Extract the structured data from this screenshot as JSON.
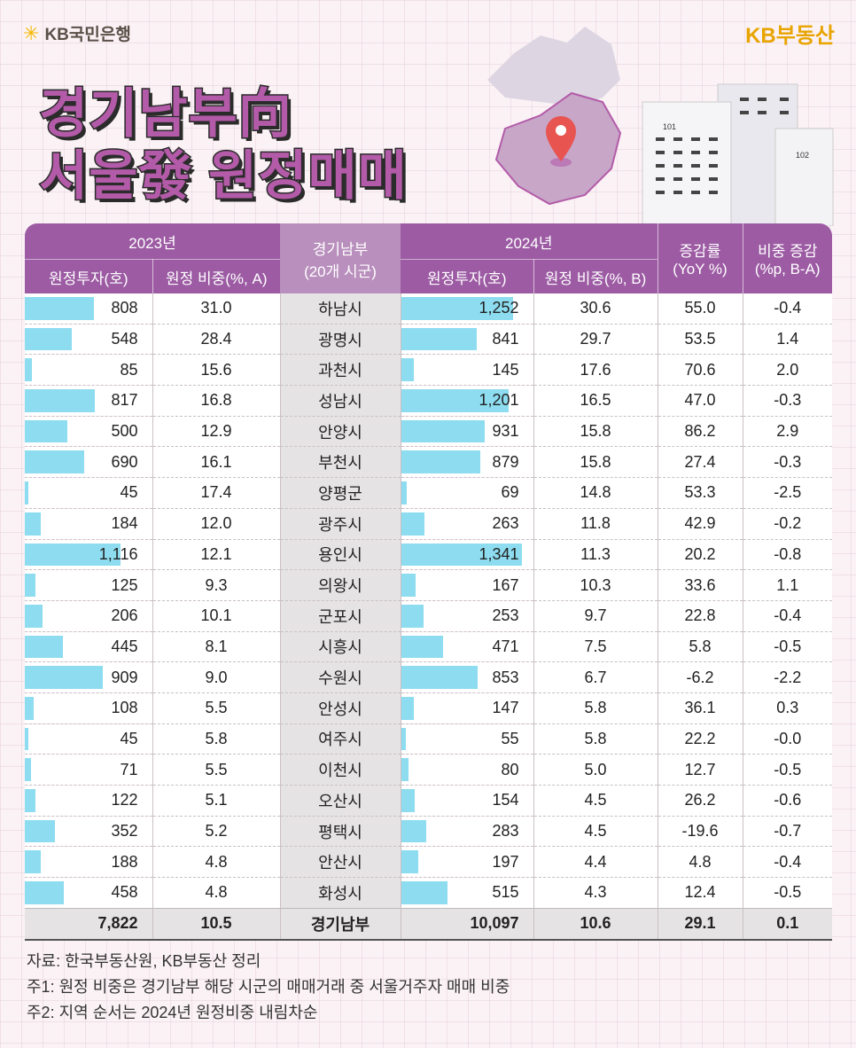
{
  "brand": {
    "bank": "KB국민은행",
    "realestate": "KB부동산"
  },
  "title": {
    "line1": "경기남부向",
    "line2": "서울發 원정매매"
  },
  "map_buildings": [
    "101",
    "102"
  ],
  "table": {
    "group_2023": "2023년",
    "group_2024": "2024년",
    "col_invest_2023": "원정투자(호)",
    "col_share_2023": "원정 비중(%, A)",
    "col_region": [
      "경기남부",
      "(20개 시군)"
    ],
    "col_invest_2024": "원정투자(호)",
    "col_share_2024": "원정 비중(%, B)",
    "col_yoy": [
      "증감률",
      "(YoY %)"
    ],
    "col_diff": [
      "비중 증감",
      "(%p, B-A)"
    ],
    "rows": [
      {
        "inv23": "808",
        "sh23": "31.0",
        "city": "하남시",
        "inv24": "1,252",
        "sh24": "30.6",
        "yoy": "55.0",
        "diff": "-0.4"
      },
      {
        "inv23": "548",
        "sh23": "28.4",
        "city": "광명시",
        "inv24": "841",
        "sh24": "29.7",
        "yoy": "53.5",
        "diff": "1.4"
      },
      {
        "inv23": "85",
        "sh23": "15.6",
        "city": "과천시",
        "inv24": "145",
        "sh24": "17.6",
        "yoy": "70.6",
        "diff": "2.0"
      },
      {
        "inv23": "817",
        "sh23": "16.8",
        "city": "성남시",
        "inv24": "1,201",
        "sh24": "16.5",
        "yoy": "47.0",
        "diff": "-0.3"
      },
      {
        "inv23": "500",
        "sh23": "12.9",
        "city": "안양시",
        "inv24": "931",
        "sh24": "15.8",
        "yoy": "86.2",
        "diff": "2.9"
      },
      {
        "inv23": "690",
        "sh23": "16.1",
        "city": "부천시",
        "inv24": "879",
        "sh24": "15.8",
        "yoy": "27.4",
        "diff": "-0.3"
      },
      {
        "inv23": "45",
        "sh23": "17.4",
        "city": "양평군",
        "inv24": "69",
        "sh24": "14.8",
        "yoy": "53.3",
        "diff": "-2.5"
      },
      {
        "inv23": "184",
        "sh23": "12.0",
        "city": "광주시",
        "inv24": "263",
        "sh24": "11.8",
        "yoy": "42.9",
        "diff": "-0.2"
      },
      {
        "inv23": "1,116",
        "sh23": "12.1",
        "city": "용인시",
        "inv24": "1,341",
        "sh24": "11.3",
        "yoy": "20.2",
        "diff": "-0.8"
      },
      {
        "inv23": "125",
        "sh23": "9.3",
        "city": "의왕시",
        "inv24": "167",
        "sh24": "10.3",
        "yoy": "33.6",
        "diff": "1.1"
      },
      {
        "inv23": "206",
        "sh23": "10.1",
        "city": "군포시",
        "inv24": "253",
        "sh24": "9.7",
        "yoy": "22.8",
        "diff": "-0.4"
      },
      {
        "inv23": "445",
        "sh23": "8.1",
        "city": "시흥시",
        "inv24": "471",
        "sh24": "7.5",
        "yoy": "5.8",
        "diff": "-0.5"
      },
      {
        "inv23": "909",
        "sh23": "9.0",
        "city": "수원시",
        "inv24": "853",
        "sh24": "6.7",
        "yoy": "-6.2",
        "diff": "-2.2"
      },
      {
        "inv23": "108",
        "sh23": "5.5",
        "city": "안성시",
        "inv24": "147",
        "sh24": "5.8",
        "yoy": "36.1",
        "diff": "0.3"
      },
      {
        "inv23": "45",
        "sh23": "5.8",
        "city": "여주시",
        "inv24": "55",
        "sh24": "5.8",
        "yoy": "22.2",
        "diff": "-0.0"
      },
      {
        "inv23": "71",
        "sh23": "5.5",
        "city": "이천시",
        "inv24": "80",
        "sh24": "5.0",
        "yoy": "12.7",
        "diff": "-0.5"
      },
      {
        "inv23": "122",
        "sh23": "5.1",
        "city": "오산시",
        "inv24": "154",
        "sh24": "4.5",
        "yoy": "26.2",
        "diff": "-0.6"
      },
      {
        "inv23": "352",
        "sh23": "5.2",
        "city": "평택시",
        "inv24": "283",
        "sh24": "4.5",
        "yoy": "-19.6",
        "diff": "-0.7"
      },
      {
        "inv23": "188",
        "sh23": "4.8",
        "city": "안산시",
        "inv24": "197",
        "sh24": "4.4",
        "yoy": "4.8",
        "diff": "-0.4"
      },
      {
        "inv23": "458",
        "sh23": "4.8",
        "city": "화성시",
        "inv24": "515",
        "sh24": "4.3",
        "yoy": "12.4",
        "diff": "-0.5"
      }
    ],
    "total": {
      "inv23": "7,822",
      "sh23": "10.5",
      "city": "경기남부",
      "inv24": "10,097",
      "sh24": "10.6",
      "yoy": "29.1",
      "diff": "0.1"
    }
  },
  "notes": [
    "자료: 한국부동산원, KB부동산 정리",
    "주1: 원정 비중은 경기남부 해당 시군의 매매거래 중 서울거주자 매매 비중",
    "주2: 지역 순서는 2024년 원정비중 내림차순"
  ],
  "colors": {
    "header": "#9c5ba3",
    "bar": "#8ddcf0",
    "title": "#b35ba8",
    "brand": "#e8a400"
  }
}
